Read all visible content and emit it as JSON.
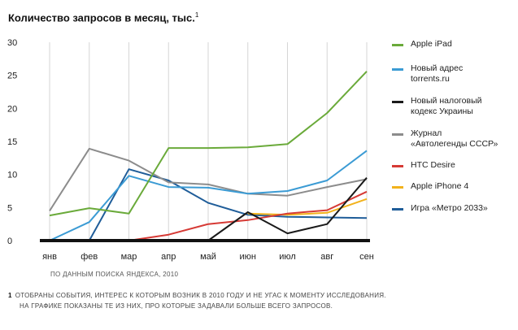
{
  "chart_data": {
    "type": "line",
    "title": "Количество запросов в месяц, тыс.",
    "title_footnote_mark": "1",
    "categories": [
      "янв",
      "фев",
      "мар",
      "апр",
      "май",
      "июн",
      "июл",
      "авг",
      "сен"
    ],
    "yticks": [
      "0",
      "5",
      "10",
      "15",
      "20",
      "25",
      "30"
    ],
    "ylim": [
      0,
      30
    ],
    "grid": "vertical",
    "legend_position": "right",
    "series": [
      {
        "name": "Apple iPad",
        "color": "#6aaa3a",
        "values": [
          3.8,
          4.9,
          4.1,
          14.0,
          14.0,
          14.1,
          14.6,
          19.3,
          25.6
        ]
      },
      {
        "name": "Новый адрес torrents.ru",
        "color": "#3b9bd4",
        "values": [
          0,
          2.8,
          9.8,
          8.1,
          8.0,
          7.1,
          7.5,
          9.1,
          13.6
        ]
      },
      {
        "name": "Новый налоговый кодекс Украины",
        "color": "#1a1a1a",
        "values": [
          null,
          null,
          null,
          null,
          0,
          4.3,
          1.1,
          2.5,
          9.5
        ]
      },
      {
        "name": "Журнал «Автолегенды СССР»",
        "color": "#8c8c8c",
        "values": [
          4.5,
          13.9,
          12.1,
          8.8,
          8.5,
          7.1,
          6.8,
          8.1,
          9.3
        ]
      },
      {
        "name": "HTC Desire",
        "color": "#d63a35",
        "values": [
          null,
          null,
          0,
          0.9,
          2.5,
          3.1,
          4.1,
          4.6,
          7.4
        ]
      },
      {
        "name": "Apple iPhone 4",
        "color": "#f2b21c",
        "values": [
          null,
          null,
          null,
          null,
          null,
          4.1,
          3.9,
          4.2,
          6.3
        ]
      },
      {
        "name": "Игра «Метро 2033»",
        "color": "#1f5d99",
        "values": [
          null,
          0,
          10.8,
          9.1,
          5.7,
          3.9,
          3.6,
          3.5,
          3.4
        ]
      }
    ],
    "legend_lines": [
      [
        "Apple iPad"
      ],
      [
        "Новый адрес",
        "torrents.ru"
      ],
      [
        "Новый налоговый",
        "кодекс Украины"
      ],
      [
        "Журнал",
        "«Автолегенды СССР»"
      ],
      [
        "HTC Desire"
      ],
      [
        "Apple iPhone 4"
      ],
      [
        "Игра «Метро 2033»"
      ]
    ],
    "source": "ПО ДАННЫМ ПОИСКА ЯНДЕКСА, 2010"
  },
  "footnote": {
    "number": "1",
    "line1": "ОТОБРАНЫ СОБЫТИЯ, ИНТЕРЕС К КОТОРЫМ ВОЗНИК В 2010 ГОДУ И НЕ УГАС К МОМЕНТУ ИССЛЕДОВАНИЯ.",
    "line2": "НА ГРАФИКЕ ПОКАЗАНЫ ТЕ ИЗ НИХ, ПРО КОТОРЫЕ ЗАДАВАЛИ БОЛЬШЕ ВСЕГО ЗАПРОСОВ."
  }
}
